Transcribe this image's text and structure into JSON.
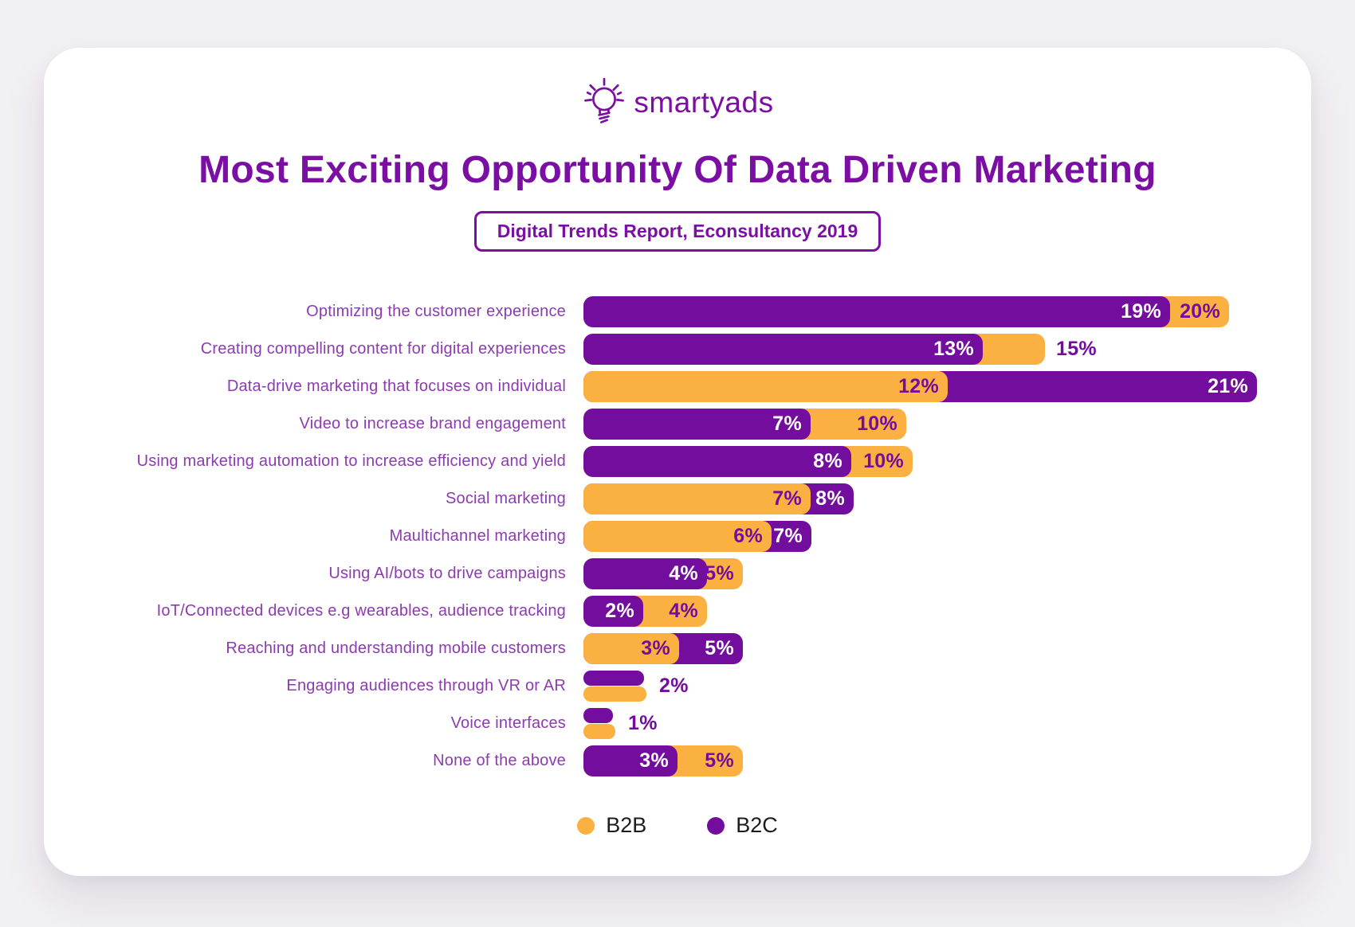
{
  "brand": {
    "name": "smartyads",
    "icon": "lightbulb-icon"
  },
  "header": {
    "title": "Most Exciting Opportunity Of Data Driven Marketing",
    "subtitle": "Digital Trends Report, Econsultancy 2019"
  },
  "colors": {
    "purple": "#720D9E",
    "orange": "#FBB042",
    "purple_title": "#7B0FA3",
    "purple_label": "#8D3BB0",
    "card_bg": "#FFFFFF",
    "page_bg": "#F1F0F3"
  },
  "legend": [
    {
      "label": "B2B",
      "color": "#FBB042"
    },
    {
      "label": "B2C",
      "color": "#720D9E"
    }
  ],
  "chart_data": {
    "type": "bar",
    "orientation": "horizontal",
    "unit": "%",
    "title": "Most Exciting Opportunity Of Data Driven Marketing",
    "subtitle": "Digital Trends Report, Econsultancy 2019",
    "legend_position": "bottom",
    "grid": false,
    "categories": [
      "Optimizing the customer experience",
      "Creating compelling content for digital experiences",
      "Data-drive marketing that focuses on individual",
      "Video to increase brand engagement",
      "Using marketing automation to increase efficiency and yield",
      "Social marketing",
      "Maultichannel marketing",
      "Using AI/bots to drive campaigns",
      "IoT/Connected devices e.g wearables, audience tracking",
      "Reaching and understanding mobile customers",
      "Engaging audiences through VR or AR",
      "Voice interfaces",
      "None of the above"
    ],
    "series": [
      {
        "name": "B2B",
        "color": "#FBB042",
        "values": [
          20,
          15,
          12,
          10,
          10,
          7,
          6,
          5,
          4,
          3,
          2,
          1,
          5
        ]
      },
      {
        "name": "B2C",
        "color": "#720D9E",
        "values": [
          19,
          13,
          21,
          7,
          8,
          8,
          7,
          4,
          2,
          5,
          2,
          1,
          3
        ]
      }
    ],
    "rows": [
      {
        "label": "Optimizing the customer experience",
        "b2b": 20,
        "b2c": 19,
        "style": "overlap",
        "front": "b2c",
        "front_text": "19%",
        "back_text": "20%",
        "back_outside": false,
        "px": {
          "b2c": 736,
          "b2b": 810
        }
      },
      {
        "label": "Creating compelling content for digital experiences",
        "b2b": 15,
        "b2c": 13,
        "style": "overlap",
        "front": "b2c",
        "front_text": "13%",
        "back_text": "15%",
        "back_outside": true,
        "px": {
          "b2c": 501,
          "b2b": 579
        }
      },
      {
        "label": "Data-drive marketing that focuses on individual",
        "b2b": 12,
        "b2c": 21,
        "style": "overlap",
        "front": "b2b",
        "front_text": "12%",
        "back_text": "21%",
        "back_outside": false,
        "px": {
          "b2b": 457,
          "b2c": 845
        }
      },
      {
        "label": "Video to increase brand engagement",
        "b2b": 10,
        "b2c": 7,
        "style": "overlap",
        "front": "b2c",
        "front_text": "7%",
        "back_text": "10%",
        "back_outside": false,
        "px": {
          "b2c": 285,
          "b2b": 405
        }
      },
      {
        "label": "Using marketing automation to increase efficiency and yield",
        "b2b": 10,
        "b2c": 8,
        "style": "overlap",
        "front": "b2c",
        "front_text": "8%",
        "back_text": "10%",
        "back_outside": false,
        "px": {
          "b2c": 336,
          "b2b": 413
        }
      },
      {
        "label": "Social marketing",
        "b2b": 7,
        "b2c": 8,
        "style": "overlap",
        "front": "b2b",
        "front_text": "7%",
        "back_text": "8%",
        "back_outside": false,
        "px": {
          "b2b": 285,
          "b2c": 339
        }
      },
      {
        "label": "Maultichannel marketing",
        "b2b": 6,
        "b2c": 7,
        "style": "overlap",
        "front": "b2b",
        "front_text": "6%",
        "back_text": "7%",
        "back_outside": false,
        "px": {
          "b2b": 236,
          "b2c": 286
        }
      },
      {
        "label": "Using AI/bots to drive campaigns",
        "b2b": 5,
        "b2c": 4,
        "style": "overlap",
        "front": "b2c",
        "front_text": "4%",
        "back_text": "5%",
        "back_outside": false,
        "px": {
          "b2c": 155,
          "b2b": 200
        }
      },
      {
        "label": "IoT/Connected devices e.g wearables, audience tracking",
        "b2b": 4,
        "b2c": 2,
        "style": "overlap",
        "front": "b2c",
        "front_text": "2%",
        "back_text": "4%",
        "back_outside": false,
        "px": {
          "b2c": 75,
          "b2b": 155
        }
      },
      {
        "label": "Reaching and understanding mobile customers",
        "b2b": 3,
        "b2c": 5,
        "style": "overlap",
        "front": "b2b",
        "front_text": "3%",
        "back_text": "5%",
        "back_outside": false,
        "px": {
          "b2b": 120,
          "b2c": 200
        }
      },
      {
        "label": "Engaging audiences through VR or AR",
        "b2b": 2,
        "b2c": 2,
        "style": "thin_pair",
        "text": "2%",
        "px": {
          "b2c": 76,
          "b2b": 79
        }
      },
      {
        "label": "Voice interfaces",
        "b2b": 1,
        "b2c": 1,
        "style": "thin_pair",
        "text": "1%",
        "px": {
          "b2c": 37,
          "b2b": 40
        }
      },
      {
        "label": "None of the above",
        "b2b": 5,
        "b2c": 3,
        "style": "overlap",
        "front": "b2c",
        "front_text": "3%",
        "back_text": "5%",
        "back_outside": false,
        "px": {
          "b2c": 118,
          "b2b": 200
        }
      }
    ]
  }
}
